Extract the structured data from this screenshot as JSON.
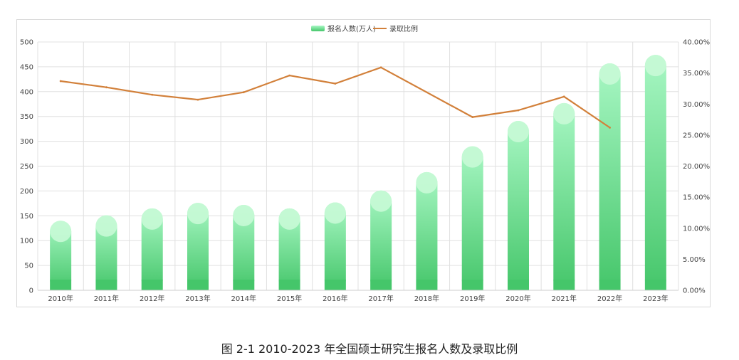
{
  "caption": "图  2-1 2010-2023 年全国硕士研究生报名人数及录取比例",
  "colors": {
    "bar_top": "#a8f7c4",
    "bar_bottom": "#45c66a",
    "bar_cap": "#c8fad6",
    "line": "#d2803a",
    "grid": "#e0e0e0",
    "axis": "#cccccc"
  },
  "chart_data": {
    "type": "bar",
    "categories": [
      "2010年",
      "2011年",
      "2012年",
      "2013年",
      "2014年",
      "2015年",
      "2016年",
      "2017年",
      "2018年",
      "2019年",
      "2020年",
      "2021年",
      "2022年",
      "2023年"
    ],
    "series": [
      {
        "name": "报名人数(万人)",
        "type": "bar",
        "axis": "left",
        "values": [
          140,
          151,
          165,
          176,
          172,
          165,
          177,
          201,
          238,
          290,
          341,
          377,
          457,
          474
        ]
      },
      {
        "name": "录取比例",
        "type": "line",
        "axis": "right",
        "values": [
          33.7,
          32.7,
          31.5,
          30.7,
          31.9,
          34.6,
          33.3,
          35.9,
          null,
          27.9,
          29.0,
          31.2,
          26.2,
          null
        ]
      }
    ],
    "legend": [
      "报名人数(万人)",
      "录取比例"
    ],
    "legend_position": "top-center",
    "left_axis": {
      "ylim": [
        0,
        500
      ],
      "ticks": [
        "0",
        "50",
        "100",
        "150",
        "200",
        "250",
        "300",
        "350",
        "400",
        "450",
        "500"
      ]
    },
    "right_axis": {
      "ylim": [
        0,
        40
      ],
      "ticks": [
        "0.00%",
        "5.00%",
        "10.00%",
        "15.00%",
        "20.00%",
        "25.00%",
        "30.00%",
        "35.00%",
        "40.00%"
      ]
    },
    "grid": true
  }
}
